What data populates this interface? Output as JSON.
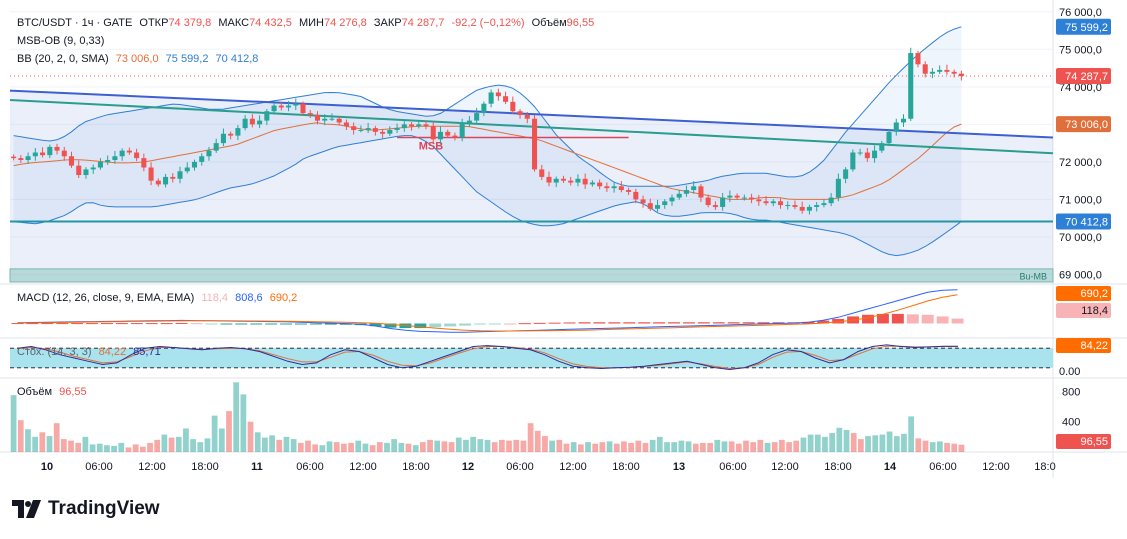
{
  "header": {
    "symbol": "BTC/USDT · 1ч · GATE",
    "ohlc": [
      {
        "label": "ОТКР",
        "value": "74 379,8"
      },
      {
        "label": "МАКС",
        "value": "74 432,5"
      },
      {
        "label": "МИН",
        "value": "74 276,8"
      },
      {
        "label": "ЗАКР",
        "value": "74 287,7"
      }
    ],
    "change": "-92,2 (−0,12%)",
    "volume_label": "Объём",
    "volume_value": "96,55",
    "msb_label": "MSB-OB (9, 0,33)",
    "bb_label": "BB (20, 2, 0, SMA)",
    "bb_values": [
      "73 006,0",
      "75 599,2",
      "70 412,8"
    ]
  },
  "colors": {
    "up": "#26a69a",
    "down": "#ef5350",
    "up_light": "#9fd8d2",
    "down_light": "#f7b3b5",
    "bb_basis": "#e0703b",
    "bb_band": "#2e7fd6",
    "trend": "#3d5fcf",
    "trend2": "#2a9d8f",
    "support": "#2196a6",
    "msb": "#d9455a",
    "macd": "#2962ff",
    "signal": "#ff6d00",
    "stoch_k": "#2a2e9c",
    "stoch_d": "#e0703b",
    "stoch_fill": "#a9e4ee"
  },
  "chart_data": [
    {
      "type": "candlestick",
      "title": "BTC/USDT · 1ч · GATE",
      "x_axis_labels": [
        "10",
        "06:00",
        "12:00",
        "18:00",
        "11",
        "06:00",
        "12:00",
        "18:00",
        "12",
        "06:00",
        "12:00",
        "18:00",
        "13",
        "06:00",
        "12:00",
        "18:00",
        "14",
        "06:00",
        "12:00",
        "18:0"
      ],
      "ylim": [
        68800,
        76100
      ],
      "y_ticks": [
        "76 000,0",
        "75 000,0",
        "74 000,0",
        "73 000,0",
        "72 000,0",
        "71 000,0",
        "70 000,0",
        "69 000,0"
      ],
      "price_labels": [
        {
          "text": "75 599,2",
          "value": 75599.2,
          "color": "#2e7fd6"
        },
        {
          "text": "74 287,7",
          "value": 74287.7,
          "color": "#ef5350"
        },
        {
          "text": "73 006,0",
          "value": 73006.0,
          "color": "#e0703b"
        },
        {
          "text": "70 412,8",
          "value": 70412.8,
          "color": "#2e7fd6"
        }
      ],
      "close": [
        72100,
        72050,
        72150,
        72250,
        72180,
        72400,
        72300,
        72150,
        71900,
        71650,
        71800,
        71850,
        72000,
        72050,
        72150,
        72300,
        72250,
        72100,
        71850,
        71500,
        71400,
        71600,
        71550,
        71750,
        71850,
        72000,
        72150,
        72300,
        72500,
        72750,
        72700,
        72900,
        73150,
        73000,
        73100,
        73350,
        73500,
        73450,
        73500,
        73550,
        73300,
        73250,
        73100,
        73150,
        73150,
        73050,
        72950,
        72850,
        72850,
        72900,
        72800,
        72750,
        72850,
        72900,
        73000,
        72950,
        73000,
        72950,
        72600,
        72800,
        72700,
        72650,
        73050,
        73100,
        73300,
        73550,
        73850,
        73750,
        73600,
        73350,
        73250,
        73150,
        71800,
        71600,
        71450,
        71550,
        71500,
        71450,
        71550,
        71400,
        71450,
        71350,
        71300,
        71350,
        71250,
        71200,
        71000,
        70900,
        70750,
        70850,
        70950,
        71050,
        71150,
        71250,
        71350,
        71050,
        70850,
        70800,
        71050,
        71100,
        71050,
        71050,
        71000,
        70950,
        70900,
        70950,
        70850,
        70850,
        70800,
        70700,
        70800,
        70850,
        70900,
        71050,
        71550,
        71800,
        72250,
        72250,
        72100,
        72300,
        72500,
        72800,
        73050,
        73150,
        74900,
        74600,
        74350,
        74400,
        74450,
        74400,
        74350,
        74287.7
      ],
      "bb_basis": [
        71900,
        71950,
        71980,
        72000,
        72020,
        72050,
        72060,
        72050,
        72030,
        72000,
        71980,
        71970,
        71980,
        72000,
        72050,
        72100,
        72150,
        72200,
        72250,
        72300,
        72350,
        72400,
        72450,
        72550,
        72650,
        72750,
        72850,
        72900,
        72950,
        73000,
        73050,
        73000,
        73000,
        72950,
        72900,
        72850,
        72850,
        72870,
        72900,
        72920,
        72950,
        72950,
        72950,
        72950,
        72950,
        72950,
        72900,
        72850,
        72800,
        72750,
        72700,
        72650,
        72600,
        72500,
        72400,
        72300,
        72200,
        72100,
        72000,
        71900,
        71800,
        71700,
        71600,
        71500,
        71400,
        71300,
        71250,
        71200,
        71150,
        71100,
        71050,
        71000,
        71000,
        71000,
        71050,
        71050,
        71050,
        71000,
        71000,
        71000,
        71000,
        71000,
        71050,
        71100,
        71200,
        71300,
        71400,
        71550,
        71750,
        71950,
        72150,
        72400,
        72650,
        72900,
        73006
      ],
      "bb_upper": [
        72700,
        72650,
        72600,
        72550,
        72600,
        72800,
        73050,
        73150,
        73250,
        73300,
        73350,
        73400,
        73450,
        73500,
        73550,
        73500,
        73450,
        73400,
        73400,
        73450,
        73500,
        73550,
        73600,
        73650,
        73700,
        73750,
        73800,
        73850,
        73850,
        73800,
        73750,
        73600,
        73450,
        73350,
        73300,
        73250,
        73200,
        73300,
        73500,
        73700,
        73900,
        74000,
        74050,
        74000,
        73800,
        73500,
        73100,
        72700,
        72400,
        72100,
        71900,
        71650,
        71450,
        71350,
        71350,
        71350,
        71350,
        71350,
        71400,
        71450,
        71500,
        71600,
        71650,
        71700,
        71700,
        71700,
        71650,
        71600,
        71600,
        71750,
        72000,
        72400,
        72800,
        73150,
        73500,
        73850,
        74200,
        74500,
        74800,
        75050,
        75300,
        75500,
        75599.2
      ],
      "bb_lower": [
        70400,
        70380,
        70350,
        70400,
        70500,
        70600,
        70800,
        70950,
        70850,
        70800,
        70800,
        70800,
        70800,
        70800,
        70850,
        70900,
        70950,
        71000,
        71100,
        71200,
        71300,
        71350,
        71400,
        71500,
        71600,
        71750,
        71900,
        72100,
        72200,
        72300,
        72400,
        72450,
        72500,
        72550,
        72600,
        72650,
        72700,
        72700,
        72600,
        72400,
        72100,
        71800,
        71500,
        71200,
        71000,
        70800,
        70600,
        70450,
        70350,
        70300,
        70300,
        70350,
        70450,
        70550,
        70650,
        70750,
        70850,
        70900,
        70950,
        70800,
        70600,
        70550,
        70550,
        70600,
        70650,
        70650,
        70650,
        70600,
        70500,
        70450,
        70450,
        70400,
        70350,
        70300,
        70250,
        70200,
        70150,
        70100,
        70000,
        69850,
        69700,
        69550,
        69500,
        69550,
        69650,
        69800,
        70000,
        70200,
        70412.8
      ],
      "trendline_1": {
        "from": [
          0,
          73900
        ],
        "to": [
          1,
          72650
        ]
      },
      "trendline_2": {
        "from": [
          0,
          73650
        ],
        "to": [
          1,
          72230
        ]
      },
      "support": 70412.8,
      "msb": {
        "label": "MSB",
        "value": 72650
      },
      "order_block": {
        "label": "Bu-MB",
        "from": 68800,
        "to": 68980
      }
    },
    {
      "type": "macd",
      "title": "MACD (12, 26, close, 9, EMA, EMA)",
      "values": [
        "118,4",
        "808,6",
        "690,2"
      ],
      "ylim": [
        -300,
        900
      ],
      "badges": [
        {
          "text": "690,2",
          "color": "#ff6d00"
        },
        {
          "text": "118,4",
          "color": "#f7b3b5"
        }
      ],
      "macd": [
        20,
        25,
        30,
        35,
        40,
        45,
        50,
        55,
        60,
        65,
        70,
        75,
        70,
        65,
        60,
        55,
        50,
        45,
        40,
        30,
        20,
        10,
        0,
        -20,
        -60,
        -120,
        -160,
        -190,
        -200,
        -210,
        -210,
        -200,
        -190,
        -180,
        -170,
        -160,
        -150,
        -140,
        -130,
        -120,
        -110,
        -100,
        -90,
        -80,
        -70,
        -60,
        -50,
        -40,
        -30,
        -20,
        -10,
        0,
        10,
        30,
        80,
        150,
        250,
        350,
        450,
        550,
        650,
        750,
        800,
        808.6
      ],
      "signal": [
        10,
        15,
        20,
        25,
        30,
        35,
        40,
        45,
        50,
        55,
        60,
        62,
        64,
        66,
        65,
        63,
        60,
        57,
        53,
        48,
        43,
        37,
        30,
        20,
        5,
        -20,
        -50,
        -80,
        -110,
        -140,
        -160,
        -175,
        -180,
        -180,
        -178,
        -175,
        -170,
        -165,
        -160,
        -150,
        -140,
        -130,
        -120,
        -110,
        -100,
        -90,
        -80,
        -70,
        -60,
        -50,
        -40,
        -30,
        -20,
        -10,
        10,
        40,
        80,
        140,
        220,
        320,
        430,
        540,
        630,
        690.2
      ],
      "hist": [
        10,
        10,
        10,
        10,
        10,
        10,
        10,
        10,
        10,
        10,
        10,
        13,
        6,
        -1,
        -5,
        -8,
        -10,
        -12,
        -13,
        -18,
        -23,
        -27,
        -30,
        -40,
        -65,
        -100,
        -110,
        -110,
        -90,
        -70,
        -50,
        -25,
        -10,
        0,
        8,
        15,
        20,
        25,
        30,
        30,
        30,
        30,
        30,
        30,
        30,
        30,
        30,
        30,
        30,
        30,
        30,
        30,
        30,
        40,
        70,
        110,
        170,
        210,
        230,
        230,
        220,
        210,
        170,
        118.4
      ]
    },
    {
      "type": "line",
      "title": "Стох. (14, 3, 3)",
      "values": [
        "84,22",
        "85,71"
      ],
      "ylim": [
        -5,
        105
      ],
      "levels": [
        80,
        20
      ],
      "badge": {
        "text": "84,22",
        "color": "#ff6d00"
      },
      "zero_label": "0.00",
      "k": [
        80,
        85,
        75,
        60,
        50,
        40,
        30,
        35,
        60,
        80,
        85,
        82,
        78,
        75,
        80,
        82,
        78,
        70,
        55,
        40,
        30,
        35,
        60,
        75,
        70,
        50,
        30,
        20,
        25,
        40,
        55,
        70,
        85,
        88,
        85,
        80,
        75,
        60,
        40,
        25,
        20,
        18,
        20,
        22,
        25,
        30,
        35,
        40,
        30,
        20,
        15,
        20,
        35,
        60,
        75,
        70,
        50,
        35,
        45,
        70,
        85,
        90,
        85,
        82,
        84,
        86,
        85.71
      ],
      "d": [
        78,
        82,
        78,
        68,
        55,
        45,
        35,
        38,
        55,
        72,
        82,
        82,
        79,
        76,
        78,
        80,
        78,
        72,
        60,
        48,
        38,
        38,
        52,
        68,
        70,
        58,
        40,
        28,
        26,
        35,
        50,
        65,
        78,
        85,
        85,
        82,
        77,
        66,
        48,
        32,
        24,
        20,
        20,
        21,
        24,
        28,
        33,
        38,
        32,
        24,
        18,
        20,
        30,
        52,
        68,
        70,
        58,
        42,
        45,
        62,
        78,
        86,
        86,
        84,
        84,
        85,
        84.22
      ]
    },
    {
      "type": "bar",
      "title": "Объём",
      "value": "96,55",
      "ylim": [
        0,
        950
      ],
      "y_ticks": [
        "800",
        "400"
      ],
      "badge": {
        "text": "96,55",
        "color": "#ef5350"
      },
      "values": [
        750,
        420,
        300,
        200,
        260,
        210,
        380,
        170,
        150,
        120,
        200,
        100,
        110,
        90,
        80,
        120,
        60,
        100,
        70,
        120,
        160,
        230,
        190,
        200,
        310,
        170,
        130,
        180,
        480,
        310,
        540,
        920,
        760,
        400,
        260,
        190,
        220,
        160,
        200,
        170,
        120,
        150,
        100,
        90,
        140,
        130,
        110,
        120,
        150,
        110,
        90,
        130,
        120,
        170,
        120,
        110,
        90,
        130,
        160,
        150,
        140,
        130,
        190,
        160,
        200,
        170,
        160,
        130,
        160,
        150,
        160,
        150,
        380,
        280,
        210,
        150,
        160,
        110,
        130,
        100,
        130,
        110,
        130,
        140,
        110,
        140,
        120,
        150,
        120,
        160,
        200,
        130,
        130,
        150,
        140,
        110,
        120,
        120,
        160,
        140,
        140,
        110,
        150,
        130,
        160,
        120,
        130,
        160,
        130,
        150,
        190,
        230,
        230,
        200,
        250,
        320,
        290,
        250,
        170,
        210,
        220,
        230,
        270,
        210,
        240,
        470,
        180,
        150,
        130,
        140,
        120,
        110,
        96.55
      ],
      "up": [
        1,
        0,
        1,
        1,
        0,
        1,
        0,
        0,
        0,
        0,
        1,
        1,
        1,
        1,
        1,
        1,
        0,
        0,
        0,
        0,
        0,
        1,
        0,
        1,
        1,
        1,
        1,
        1,
        1,
        1,
        0,
        1,
        1,
        0,
        1,
        1,
        1,
        0,
        1,
        1,
        0,
        0,
        0,
        1,
        1,
        0,
        0,
        0,
        1,
        1,
        0,
        0,
        1,
        1,
        1,
        0,
        1,
        0,
        0,
        1,
        0,
        0,
        1,
        1,
        1,
        1,
        1,
        0,
        0,
        0,
        0,
        0,
        0,
        0,
        0,
        1,
        0,
        0,
        1,
        0,
        1,
        0,
        0,
        1,
        0,
        0,
        0,
        0,
        0,
        1,
        1,
        1,
        1,
        1,
        1,
        0,
        0,
        0,
        1,
        1,
        0,
        0,
        0,
        0,
        0,
        1,
        0,
        0,
        0,
        0,
        1,
        1,
        1,
        1,
        1,
        1,
        1,
        0,
        0,
        1,
        1,
        1,
        1,
        1,
        1,
        1,
        0,
        0,
        1,
        1,
        0,
        0,
        0
      ]
    }
  ],
  "brand": "TradingView"
}
